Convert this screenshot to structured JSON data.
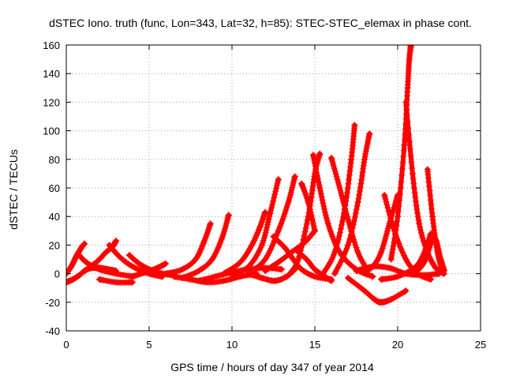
{
  "chart_data": {
    "type": "scatter",
    "title": "dSTEC Iono. truth (func, Lon=343, Lat=32, h=85): STEC-STEC_elemax in phase cont.",
    "xlabel": "GPS time / hours of day 347 of year 2014",
    "ylabel": "dSTEC  / TECUs",
    "xlim": [
      0,
      25
    ],
    "ylim": [
      -40,
      160
    ],
    "xticks": [
      0,
      5,
      10,
      15,
      20,
      25
    ],
    "yticks": [
      -40,
      -20,
      0,
      20,
      40,
      60,
      80,
      100,
      120,
      140,
      160
    ],
    "grid": true,
    "marker": "plus",
    "color": "#ff0000",
    "series": [
      {
        "x": [
          0.0,
          0.4,
          0.8,
          1.1,
          1.5,
          2.0,
          2.5,
          3.0
        ],
        "y": [
          -6,
          -4,
          -1,
          2,
          4,
          4,
          3,
          2
        ]
      },
      {
        "x": [
          0.0,
          0.3,
          0.6,
          0.9,
          1.1
        ],
        "y": [
          0,
          5,
          12,
          18,
          21
        ]
      },
      {
        "x": [
          0.7,
          1.2,
          2.0,
          3.0,
          4.0
        ],
        "y": [
          14,
          8,
          3,
          0,
          -2
        ]
      },
      {
        "x": [
          1.5,
          2.0,
          2.4,
          2.8,
          3.0
        ],
        "y": [
          5,
          10,
          15,
          19,
          23
        ]
      },
      {
        "x": [
          2.6,
          3.2,
          4.0,
          5.0,
          5.8
        ],
        "y": [
          20,
          12,
          5,
          0,
          -2
        ]
      },
      {
        "x": [
          2.0,
          3.0,
          4.0
        ],
        "y": [
          -4,
          -6,
          -6
        ]
      },
      {
        "x": [
          3.8,
          4.4,
          5.0,
          5.8,
          6.5
        ],
        "y": [
          13,
          7,
          3,
          0,
          -1
        ]
      },
      {
        "x": [
          4.0,
          4.8,
          5.5,
          6.0
        ],
        "y": [
          -2,
          1,
          4,
          7
        ]
      },
      {
        "x": [
          6.0,
          7.0,
          7.8,
          8.3,
          8.7
        ],
        "y": [
          0,
          3,
          10,
          22,
          35
        ]
      },
      {
        "x": [
          7.0,
          8.0,
          8.8,
          9.4,
          9.8
        ],
        "y": [
          -3,
          2,
          10,
          25,
          41
        ]
      },
      {
        "x": [
          6.5,
          7.5,
          8.5,
          9.5,
          10.5,
          11.5
        ],
        "y": [
          -2,
          -4,
          -6,
          -5,
          -2,
          0
        ]
      },
      {
        "x": [
          8.0,
          9.0,
          10.0,
          11.0,
          12.0,
          13.0
        ],
        "y": [
          -5,
          -2,
          1,
          3,
          4,
          3
        ]
      },
      {
        "x": [
          9.5,
          10.5,
          11.2,
          11.7,
          12.0
        ],
        "y": [
          0,
          8,
          20,
          33,
          43
        ]
      },
      {
        "x": [
          10.0,
          11.0,
          11.8,
          12.3,
          12.8
        ],
        "y": [
          -1,
          5,
          20,
          42,
          66
        ]
      },
      {
        "x": [
          11.0,
          12.0,
          12.8,
          13.4,
          13.8
        ],
        "y": [
          0,
          10,
          30,
          50,
          68
        ]
      },
      {
        "x": [
          11.0,
          11.8,
          12.6,
          13.3,
          13.8
        ],
        "y": [
          0,
          -3,
          -5,
          -2,
          3
        ]
      },
      {
        "x": [
          12.0,
          12.8,
          13.6,
          14.4,
          15.0
        ],
        "y": [
          2,
          8,
          15,
          22,
          30
        ]
      },
      {
        "x": [
          12.5,
          13.2,
          13.7,
          14.2,
          15.0,
          16.0
        ],
        "y": [
          26,
          18,
          10,
          3,
          -2,
          -4
        ]
      },
      {
        "x": [
          13.5,
          14.0,
          14.6,
          15.0,
          15.3
        ],
        "y": [
          0,
          10,
          40,
          70,
          84
        ]
      },
      {
        "x": [
          14.2,
          14.6,
          15.0
        ],
        "y": [
          63,
          50,
          30
        ]
      },
      {
        "x": [
          14.9,
          15.3,
          15.8,
          16.5,
          17.5,
          18.5
        ],
        "y": [
          83,
          60,
          35,
          15,
          3,
          -2
        ]
      },
      {
        "x": [
          15.5,
          16.2,
          16.8,
          17.2,
          17.4
        ],
        "y": [
          0,
          15,
          45,
          80,
          104
        ]
      },
      {
        "x": [
          16.0,
          16.5,
          17.0,
          17.6,
          18.2
        ],
        "y": [
          81,
          60,
          38,
          15,
          2
        ]
      },
      {
        "x": [
          16.2,
          17.0,
          17.6,
          18.0,
          18.3
        ],
        "y": [
          0,
          20,
          50,
          80,
          98
        ]
      },
      {
        "x": [
          14.0,
          14.5,
          15.0,
          15.6,
          16.0
        ],
        "y": [
          15,
          10,
          3,
          -2,
          -5
        ]
      },
      {
        "x": [
          17.0,
          18.0,
          18.6,
          19.0,
          19.6,
          20.5
        ],
        "y": [
          -3,
          -12,
          -18,
          -20,
          -18,
          -12
        ]
      },
      {
        "x": [
          18.0,
          18.5,
          19.0,
          19.5,
          20.0
        ],
        "y": [
          2,
          5,
          15,
          35,
          55
        ]
      },
      {
        "x": [
          19.2,
          19.8,
          20.5,
          21.2,
          22.0
        ],
        "y": [
          55,
          30,
          10,
          0,
          -4
        ]
      },
      {
        "x": [
          19.6,
          20.0,
          20.4,
          20.6,
          20.7,
          20.8
        ],
        "y": [
          10,
          40,
          90,
          130,
          150,
          160
        ]
      },
      {
        "x": [
          20.5,
          20.9,
          21.3,
          21.8,
          22.3,
          22.8
        ],
        "y": [
          120,
          70,
          35,
          15,
          4,
          0
        ]
      },
      {
        "x": [
          19.0,
          20.0,
          21.0,
          21.5,
          22.0
        ],
        "y": [
          -4,
          -2,
          4,
          12,
          28
        ]
      },
      {
        "x": [
          21.8,
          22.1,
          22.4,
          22.7
        ],
        "y": [
          73,
          40,
          15,
          2
        ]
      },
      {
        "x": [
          21.0,
          21.6,
          22.2,
          22.6,
          22.8
        ],
        "y": [
          0,
          8,
          25,
          10,
          2
        ]
      },
      {
        "x": [
          17.5,
          18.5,
          19.5,
          20.5,
          21.5,
          22.5
        ],
        "y": [
          2,
          5,
          4,
          0,
          -1,
          0
        ]
      }
    ]
  }
}
